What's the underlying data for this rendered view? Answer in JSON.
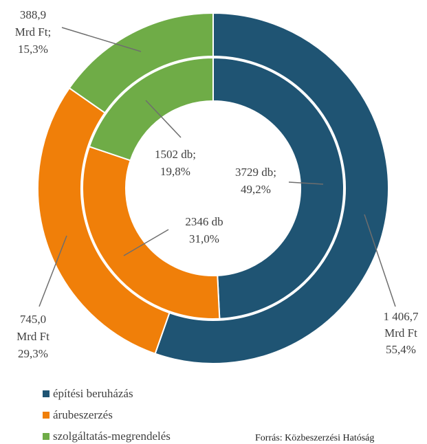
{
  "chart_data": {
    "type": "donut",
    "categories": [
      "építési beruházás",
      "árubeszerzés",
      "szolgáltatás-megrendelés"
    ],
    "colors": [
      "#1f5473",
      "#f07f09",
      "#6fac47"
    ],
    "series": [
      {
        "values": [
          1406.7,
          745.0,
          388.9
        ],
        "value_labels": [
          [
            "1 406,7",
            "Mrd Ft",
            "55,4%"
          ],
          [
            "745,0",
            "Mrd Ft",
            "29,3%"
          ],
          [
            "388,9",
            "Mrd Ft;",
            "15,3%"
          ]
        ]
      },
      {
        "values": [
          3729,
          2346,
          1502
        ],
        "value_labels": [
          [
            "3729 db;",
            "49,2%"
          ],
          [
            "2346 db",
            "31,0%"
          ],
          [
            "1502 db;",
            "19,8%"
          ]
        ]
      }
    ],
    "legend": "bottom-left",
    "source": "Forrás: Közbeszerzési Hatóság"
  }
}
